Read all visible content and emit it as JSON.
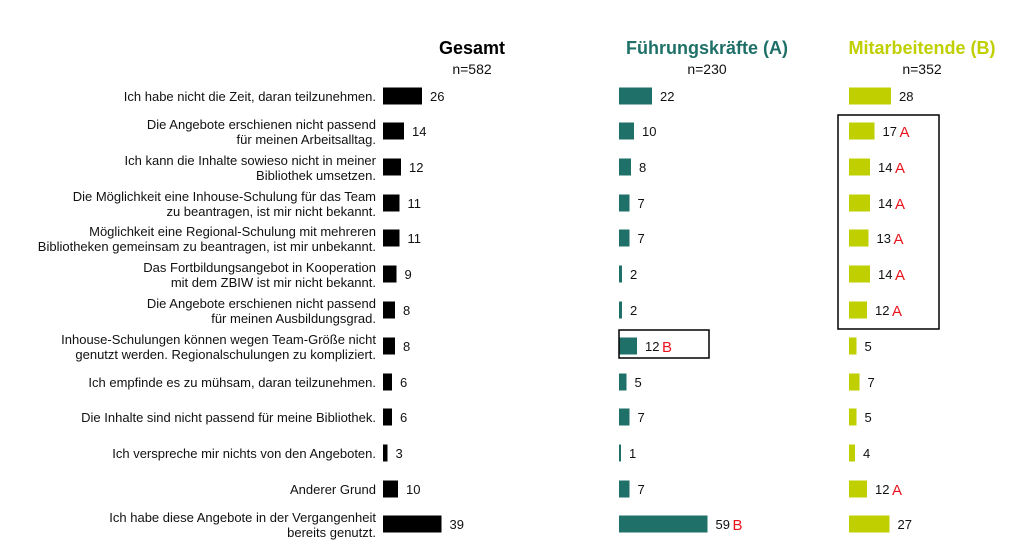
{
  "colors": {
    "gesamt": "#000000",
    "fuehrung": "#1f7068",
    "mitarbeit": "#bfcf00",
    "sig": "#e8141c"
  },
  "chart_data": {
    "type": "bar",
    "orientation": "horizontal",
    "categories": [
      [
        "Ich habe nicht die Zeit, daran teilzunehmen."
      ],
      [
        "Die Angebote erschienen nicht passend",
        "für meinen Arbeitsalltag."
      ],
      [
        "Ich kann die Inhalte sowieso nicht in meiner",
        "Bibliothek umsetzen."
      ],
      [
        "Die Möglichkeit eine Inhouse-Schulung für das Team",
        "zu beantragen, ist mir nicht bekannt."
      ],
      [
        "Möglichkeit eine Regional-Schulung mit mehreren",
        "Bibliotheken gemeinsam zu beantragen, ist mir unbekannt."
      ],
      [
        "Das Fortbildungsangebot in Kooperation",
        "mit dem ZBIW ist mir nicht bekannt."
      ],
      [
        "Die Angebote erschienen nicht passend",
        "für meinen Ausbildungsgrad."
      ],
      [
        "Inhouse-Schulungen können wegen Team-Größe nicht",
        "genutzt werden. Regionalschulungen zu kompliziert."
      ],
      [
        "Ich empfinde es zu mühsam, daran teilzunehmen."
      ],
      [
        "Die Inhalte sind nicht passend für meine Bibliothek."
      ],
      [
        "Ich verspreche mir nichts von den Angeboten."
      ],
      [
        "Anderer Grund"
      ],
      [
        "Ich habe diese Angebote in der Vergangenheit",
        "bereits genutzt."
      ]
    ],
    "series": [
      {
        "name": "Gesamt",
        "n": "n=582",
        "values": [
          26,
          14,
          12,
          11,
          11,
          9,
          8,
          8,
          6,
          6,
          3,
          10,
          39
        ],
        "marks": [
          "",
          "",
          "",
          "",
          "",
          "",
          "",
          "",
          "",
          "",
          "",
          "",
          ""
        ]
      },
      {
        "name": "Führungskräfte (A)",
        "n": "n=230",
        "values": [
          22,
          10,
          8,
          7,
          7,
          2,
          2,
          12,
          5,
          7,
          1,
          7,
          59
        ],
        "marks": [
          "",
          "",
          "",
          "",
          "",
          "",
          "",
          "B",
          "",
          "",
          "",
          "",
          "B"
        ]
      },
      {
        "name": "Mitarbeitende (B)",
        "n": "n=352",
        "values": [
          28,
          17,
          14,
          14,
          13,
          14,
          12,
          5,
          7,
          5,
          4,
          12,
          27
        ],
        "marks": [
          "",
          "A",
          "A",
          "A",
          "A",
          "A",
          "A",
          "",
          "",
          "",
          "",
          "A",
          ""
        ]
      }
    ]
  }
}
